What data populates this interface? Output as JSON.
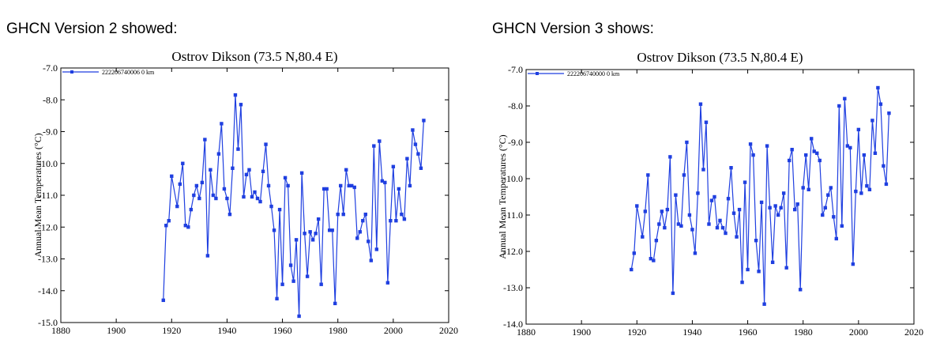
{
  "panels": [
    {
      "heading": "GHCN Version 2 showed:",
      "chart_data": {
        "type": "line",
        "title": "Ostrov Dikson (73.5 N,80.4 E)",
        "xlabel": "",
        "ylabel": "Annual Mean Temperatures (°C)",
        "xlim": [
          1880,
          2020
        ],
        "ylim": [
          -15.0,
          -7.0
        ],
        "x_ticks": [
          "1880",
          "1900",
          "1920",
          "1940",
          "1960",
          "1980",
          "2000",
          "2020"
        ],
        "y_ticks": [
          "-7.0",
          "-8.0",
          "-9.0",
          "-10.0",
          "-11.0",
          "-12.0",
          "-13.0",
          "-14.0",
          "-15.0"
        ],
        "grid": false,
        "legend_position": "top-left",
        "series": [
          {
            "name": "222206740006  0 km",
            "color": "#1f3fe0",
            "marker": "square",
            "x": [
              1917,
              1918,
              1919,
              1920,
              1922,
              1923,
              1924,
              1925,
              1926,
              1927,
              1928,
              1929,
              1930,
              1931,
              1932,
              1933,
              1934,
              1935,
              1936,
              1937,
              1938,
              1939,
              1940,
              1941,
              1942,
              1943,
              1944,
              1945,
              1946,
              1947,
              1948,
              1949,
              1950,
              1951,
              1952,
              1953,
              1954,
              1955,
              1956,
              1957,
              1958,
              1959,
              1960,
              1961,
              1962,
              1963,
              1964,
              1965,
              1966,
              1967,
              1968,
              1969,
              1970,
              1971,
              1972,
              1973,
              1974,
              1975,
              1976,
              1977,
              1978,
              1979,
              1980,
              1981,
              1982,
              1983,
              1984,
              1985,
              1986,
              1987,
              1988,
              1989,
              1990,
              1991,
              1992,
              1993,
              1994,
              1995,
              1996,
              1997,
              1998,
              1999,
              2000,
              2001,
              2002,
              2003,
              2004,
              2005,
              2006,
              2007,
              2008,
              2009,
              2010,
              2011
            ],
            "values": [
              -14.3,
              -11.95,
              -11.8,
              -10.4,
              -11.35,
              -10.65,
              -10.0,
              -11.95,
              -12.0,
              -11.45,
              -11.0,
              -10.7,
              -11.1,
              -10.6,
              -9.25,
              -12.9,
              -10.2,
              -11.0,
              -11.1,
              -9.7,
              -8.75,
              -10.8,
              -11.1,
              -11.6,
              -10.15,
              -7.85,
              -9.55,
              -8.15,
              -11.05,
              -10.35,
              -10.2,
              -11.05,
              -10.9,
              -11.1,
              -11.2,
              -10.25,
              -9.4,
              -10.7,
              -11.35,
              -12.1,
              -14.25,
              -11.45,
              -13.8,
              -10.45,
              -10.7,
              -13.2,
              -13.7,
              -12.4,
              -14.8,
              -10.3,
              -12.2,
              -13.55,
              -12.15,
              -12.4,
              -12.2,
              -11.75,
              -13.8,
              -10.8,
              -10.8,
              -12.1,
              -12.1,
              -14.4,
              -11.6,
              -10.7,
              -11.6,
              -10.2,
              -10.7,
              -10.7,
              -10.75,
              -12.35,
              -12.15,
              -11.8,
              -11.6,
              -12.45,
              -13.05,
              -9.45,
              -12.7,
              -9.3,
              -10.55,
              -10.6,
              -13.75,
              -11.8,
              -10.1,
              -11.8,
              -10.8,
              -11.6,
              -11.75,
              -9.85,
              -10.7,
              -8.95,
              -9.4,
              -9.7,
              -10.15,
              -8.65
            ]
          }
        ]
      }
    },
    {
      "heading": "GHCN Version 3 shows:",
      "chart_data": {
        "type": "line",
        "title": "Ostrov Dikson (73.5 N,80.4 E)",
        "xlabel": "",
        "ylabel": "Annual Mean Temperatures (°C)",
        "xlim": [
          1880,
          2020
        ],
        "ylim": [
          -14.0,
          -7.0
        ],
        "x_ticks": [
          "1880",
          "1900",
          "1920",
          "1940",
          "1960",
          "1980",
          "2000",
          "2020"
        ],
        "y_ticks": [
          "-7.0",
          "-8.0",
          "-9.0",
          "-10.0",
          "-11.0",
          "-12.0",
          "-13.0",
          "-14.0"
        ],
        "grid": false,
        "legend_position": "top-left",
        "series": [
          {
            "name": "222206740000  0 km",
            "color": "#1f3fe0",
            "marker": "square",
            "x": [
              1918,
              1919,
              1920,
              1922,
              1923,
              1924,
              1925,
              1926,
              1927,
              1928,
              1929,
              1930,
              1931,
              1932,
              1933,
              1934,
              1935,
              1936,
              1937,
              1938,
              1939,
              1940,
              1941,
              1942,
              1943,
              1944,
              1945,
              1946,
              1947,
              1948,
              1949,
              1950,
              1951,
              1952,
              1953,
              1954,
              1955,
              1956,
              1957,
              1958,
              1959,
              1960,
              1961,
              1962,
              1963,
              1964,
              1965,
              1966,
              1967,
              1968,
              1969,
              1970,
              1971,
              1972,
              1973,
              1974,
              1975,
              1976,
              1977,
              1978,
              1979,
              1980,
              1981,
              1982,
              1983,
              1984,
              1985,
              1986,
              1987,
              1988,
              1989,
              1990,
              1991,
              1992,
              1993,
              1994,
              1995,
              1996,
              1997,
              1998,
              1999,
              2000,
              2001,
              2002,
              2003,
              2004,
              2005,
              2006,
              2007,
              2008,
              2009,
              2010,
              2011
            ],
            "values": [
              -12.5,
              -12.05,
              -10.75,
              -11.6,
              -10.9,
              -9.9,
              -12.2,
              -12.25,
              -11.7,
              -11.25,
              -10.9,
              -11.35,
              -10.85,
              -9.4,
              -13.15,
              -10.45,
              -11.25,
              -11.3,
              -9.9,
              -9.0,
              -11.0,
              -11.4,
              -12.05,
              -10.4,
              -7.95,
              -9.75,
              -8.45,
              -11.25,
              -10.6,
              -10.5,
              -11.35,
              -11.15,
              -11.35,
              -11.5,
              -10.55,
              -9.7,
              -10.95,
              -11.6,
              -10.85,
              -12.85,
              -10.1,
              -12.5,
              -9.05,
              -9.35,
              -11.7,
              -12.55,
              -10.65,
              -13.45,
              -9.1,
              -10.8,
              -12.3,
              -10.75,
              -11.0,
              -10.8,
              -10.4,
              -12.45,
              -9.5,
              -9.2,
              -10.85,
              -10.7,
              -13.05,
              -10.25,
              -9.35,
              -10.3,
              -8.9,
              -9.25,
              -9.3,
              -9.5,
              -11.0,
              -10.8,
              -10.45,
              -10.25,
              -11.05,
              -11.65,
              -8.0,
              -11.3,
              -7.8,
              -9.1,
              -9.15,
              -12.35,
              -10.35,
              -8.65,
              -10.4,
              -9.35,
              -10.2,
              -10.3,
              -8.4,
              -9.3,
              -7.5,
              -7.95,
              -9.65,
              -10.15,
              -8.2
            ]
          }
        ]
      }
    }
  ]
}
